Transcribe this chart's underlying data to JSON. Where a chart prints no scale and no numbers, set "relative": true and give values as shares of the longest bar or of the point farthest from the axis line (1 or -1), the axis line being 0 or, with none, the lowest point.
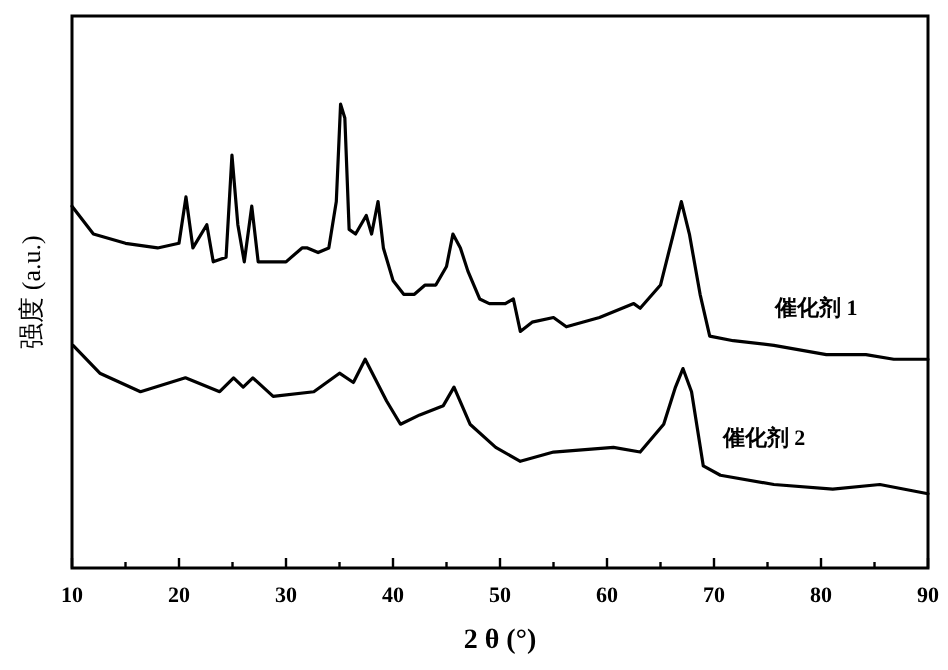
{
  "chart_data": {
    "type": "line",
    "relative": true,
    "xlabel": "2 θ (°)",
    "ylabel": "强度 (a.u.)",
    "xlim": [
      10,
      90
    ],
    "xticks": [
      10,
      {
        "value": 15,
        "label": null
      },
      20,
      {
        "value": 25,
        "label": null
      },
      30,
      {
        "value": 35,
        "label": null
      },
      40,
      {
        "value": 45,
        "label": null
      },
      50,
      {
        "value": 55,
        "label": null
      },
      60,
      {
        "value": 65,
        "label": null
      },
      70,
      {
        "value": 75,
        "label": null
      },
      80,
      {
        "value": 85,
        "label": null
      },
      90
    ],
    "legend": false,
    "grid": false,
    "marker": "none",
    "line_style": "solid",
    "series": [
      {
        "name": "催化剂 1",
        "color": "#000000",
        "x": [
          10,
          12,
          15,
          18,
          20,
          20.65,
          21.3,
          22.6,
          23.2,
          24.4,
          24.95,
          25.5,
          26.1,
          26.8,
          27.4,
          28,
          30,
          31.5,
          32,
          33,
          34,
          34.7,
          35.1,
          35.5,
          35.9,
          36.5,
          37.5,
          38,
          38.6,
          39.1,
          40,
          41,
          42,
          43,
          44,
          45,
          45.6,
          46.3,
          47,
          48.1,
          49,
          50.5,
          51.25,
          51.9,
          53,
          55,
          56.2,
          59.3,
          62.5,
          63.1,
          65,
          66.2,
          66.95,
          67.7,
          68.7,
          69.6,
          71.8,
          75.6,
          80.5,
          84.2,
          86.8,
          90
        ],
        "values": [
          0.78,
          0.72,
          0.7,
          0.69,
          0.7,
          0.8,
          0.69,
          0.74,
          0.66,
          0.67,
          0.89,
          0.74,
          0.66,
          0.78,
          0.66,
          0.66,
          0.66,
          0.69,
          0.69,
          0.68,
          0.69,
          0.79,
          1,
          0.97,
          0.73,
          0.72,
          0.76,
          0.72,
          0.79,
          0.69,
          0.62,
          0.59,
          0.59,
          0.61,
          0.61,
          0.65,
          0.72,
          0.69,
          0.64,
          0.58,
          0.57,
          0.57,
          0.58,
          0.51,
          0.53,
          0.54,
          0.52,
          0.54,
          0.57,
          0.56,
          0.61,
          0.72,
          0.79,
          0.72,
          0.59,
          0.5,
          0.49,
          0.48,
          0.46,
          0.46,
          0.45,
          0.45
        ]
      },
      {
        "name": "催化剂 2",
        "color": "#000000",
        "x": [
          10.1,
          12.6,
          16.4,
          20.6,
          23.8,
          25.1,
          26,
          26.9,
          28.8,
          32.6,
          35,
          36.3,
          37.4,
          39.4,
          40.7,
          42.5,
          44.7,
          45.7,
          47.2,
          49.6,
          51.9,
          55,
          60.6,
          63.1,
          65.3,
          66.4,
          67.1,
          67.9,
          69,
          70.6,
          75.6,
          81.1,
          85.5,
          90
        ],
        "values": [
          0.48,
          0.42,
          0.38,
          0.41,
          0.38,
          0.41,
          0.39,
          0.41,
          0.37,
          0.38,
          0.42,
          0.4,
          0.45,
          0.36,
          0.31,
          0.33,
          0.35,
          0.39,
          0.31,
          0.26,
          0.23,
          0.25,
          0.26,
          0.25,
          0.31,
          0.39,
          0.43,
          0.38,
          0.22,
          0.2,
          0.18,
          0.17,
          0.18,
          0.16
        ]
      }
    ]
  }
}
